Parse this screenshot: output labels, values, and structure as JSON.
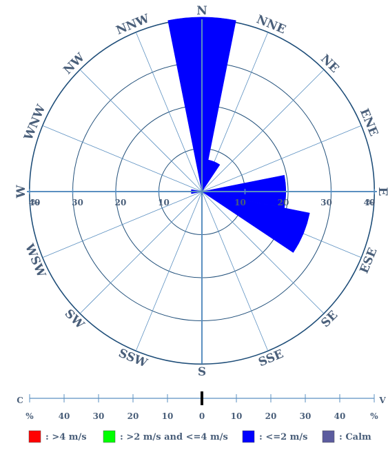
{
  "chart_data": {
    "type": "wind-rose",
    "title": "",
    "unit_symbol": "%",
    "directions": [
      "N",
      "NNE",
      "NE",
      "ENE",
      "E",
      "ESE",
      "SE",
      "SSE",
      "S",
      "SSW",
      "SW",
      "WSW",
      "W",
      "WNW",
      "NW",
      "NNW"
    ],
    "ring_values": [
      10,
      20,
      30,
      40
    ],
    "r_max": 40,
    "colors": {
      "gt4": "#ff0000",
      "2to4": "#00ff00",
      "le2": "#0000ff",
      "calm": "#5c5c9e",
      "axis": "#5a8fc0",
      "grid": "#1f4e79",
      "label": "#4a5f7a",
      "indicator": "#000000"
    },
    "series": [
      {
        "name": ": >4 m/s",
        "key": "gt4",
        "values": [
          0,
          0,
          0,
          0,
          0,
          0,
          0,
          0,
          0,
          0,
          0,
          0,
          0,
          0,
          0,
          0
        ]
      },
      {
        "name": ": >2 m/s and <=4 m/s",
        "key": "2to4",
        "values": [
          0,
          0,
          0,
          0,
          0,
          0,
          0,
          0,
          0,
          0,
          0,
          0,
          0,
          0,
          0,
          0
        ]
      },
      {
        "name": ": <=2 m/s",
        "key": "le2",
        "values": [
          40.5,
          7.5,
          0,
          0,
          19.5,
          25.5,
          0,
          0,
          0,
          0,
          0,
          0,
          2.5,
          0,
          0,
          0
        ]
      },
      {
        "name": ": Calm",
        "key": "calm",
        "values": []
      }
    ],
    "scale_bar": {
      "left_end": "C",
      "right_end": "V",
      "ticks": [
        "%",
        "40",
        "30",
        "20",
        "10",
        "0",
        "10",
        "20",
        "30",
        "40",
        "%"
      ],
      "indicator_value": 0
    }
  }
}
